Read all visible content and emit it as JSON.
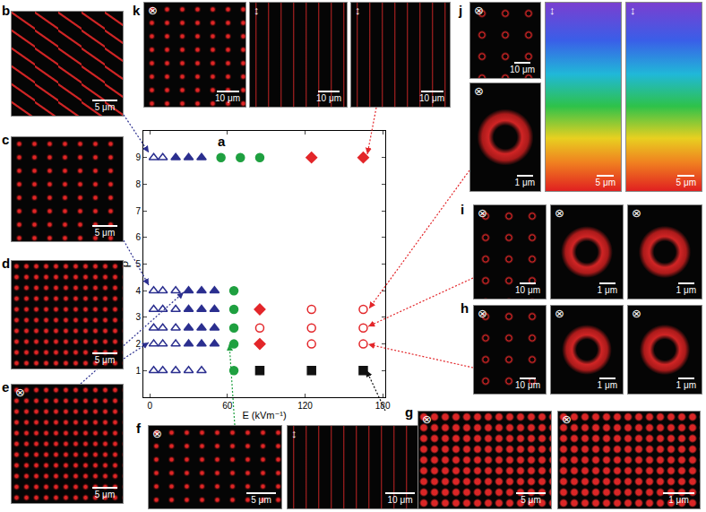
{
  "chart_data": {
    "type": "scatter",
    "panel_label": "a",
    "xlabel": "E (kVm⁻¹)",
    "ylabel": "ρ",
    "xlim": [
      -5,
      182
    ],
    "ylim": [
      0,
      10
    ],
    "xticks": [
      0,
      60,
      120,
      180
    ],
    "yticks": [
      1,
      2,
      3,
      4,
      5,
      6,
      7,
      8,
      9
    ],
    "grid": false,
    "series": [
      {
        "marker": "triangle-up-open",
        "color": "#2b2f8f",
        "x": [
          3,
          10,
          3,
          10,
          20,
          3,
          10,
          20,
          3,
          10,
          20,
          3,
          10,
          20,
          3,
          10,
          20,
          30,
          40
        ],
        "y": [
          9,
          9,
          4,
          4,
          4,
          3.3,
          3.3,
          3.3,
          2.6,
          2.6,
          2.6,
          2,
          2,
          2,
          1,
          1,
          1,
          1,
          1
        ]
      },
      {
        "marker": "triangle-up",
        "color": "#2b2f8f",
        "x": [
          20,
          30,
          40,
          30,
          40,
          50,
          30,
          40,
          50,
          30,
          40,
          50,
          30,
          40,
          50
        ],
        "y": [
          9,
          9,
          9,
          4,
          4,
          4,
          3.3,
          3.3,
          3.3,
          2.6,
          2.6,
          2.6,
          2,
          2,
          2
        ]
      },
      {
        "marker": "circle",
        "color": "#1fa040",
        "x": [
          55,
          70,
          85,
          65,
          65,
          65,
          65,
          65
        ],
        "y": [
          9,
          9,
          9,
          4,
          3.3,
          2.6,
          2,
          1
        ]
      },
      {
        "marker": "diamond",
        "color": "#e3262a",
        "x": [
          125,
          165,
          85,
          85
        ],
        "y": [
          9,
          9,
          3.3,
          2
        ]
      },
      {
        "marker": "circle-open",
        "color": "#e3262a",
        "x": [
          125,
          165,
          85,
          125,
          165,
          125,
          165
        ],
        "y": [
          3.3,
          3.3,
          2.6,
          2.6,
          2.6,
          2,
          2
        ]
      },
      {
        "marker": "square",
        "color": "#111111",
        "x": [
          85,
          125,
          165
        ],
        "y": [
          1,
          1,
          1
        ]
      }
    ]
  },
  "panels": [
    {
      "label": "b",
      "images": [
        {
          "scale_bar": "5 μm"
        }
      ]
    },
    {
      "label": "c",
      "images": [
        {
          "scale_bar": "5 μm"
        }
      ]
    },
    {
      "label": "d",
      "images": [
        {
          "scale_bar": "5 μm"
        }
      ]
    },
    {
      "label": "e",
      "images": [
        {
          "symbol": "⊗",
          "scale_bar": "5 μm"
        }
      ]
    },
    {
      "label": "f",
      "images": [
        {
          "symbol": "⊗",
          "scale_bar": "5 μm"
        },
        {
          "symbol": "↕",
          "scale_bar": "10 μm"
        }
      ]
    },
    {
      "label": "g",
      "images": [
        {
          "symbol": "⊗",
          "scale_bar": "5 μm"
        },
        {
          "symbol": "⊗",
          "scale_bar": "1 μm"
        }
      ]
    },
    {
      "label": "h",
      "images": [
        {
          "symbol": "⊗",
          "scale_bar": "10 μm"
        },
        {
          "symbol": "⊗",
          "scale_bar": "1 μm"
        },
        {
          "symbol": "⊗",
          "scale_bar": "1 μm"
        }
      ]
    },
    {
      "label": "i",
      "images": [
        {
          "symbol": "⊗",
          "scale_bar": "10 μm"
        },
        {
          "symbol": "⊗",
          "scale_bar": "1 μm"
        },
        {
          "symbol": "⊗",
          "scale_bar": "1 μm"
        }
      ]
    },
    {
      "label": "j",
      "images": [
        {
          "symbol": "⊗",
          "scale_bar": "10 μm"
        },
        {
          "symbol": "⊗",
          "scale_bar": "1 μm"
        },
        {
          "symbol": "↕",
          "scale_bar": "5 μm"
        },
        {
          "symbol": "↕",
          "scale_bar": "5 μm"
        }
      ]
    },
    {
      "label": "k",
      "images": [
        {
          "symbol": "⊗",
          "scale_bar": "10 μm"
        },
        {
          "symbol": "↕",
          "scale_bar": "10 μm"
        },
        {
          "symbol": "↕",
          "scale_bar": "10 μm"
        }
      ]
    }
  ]
}
